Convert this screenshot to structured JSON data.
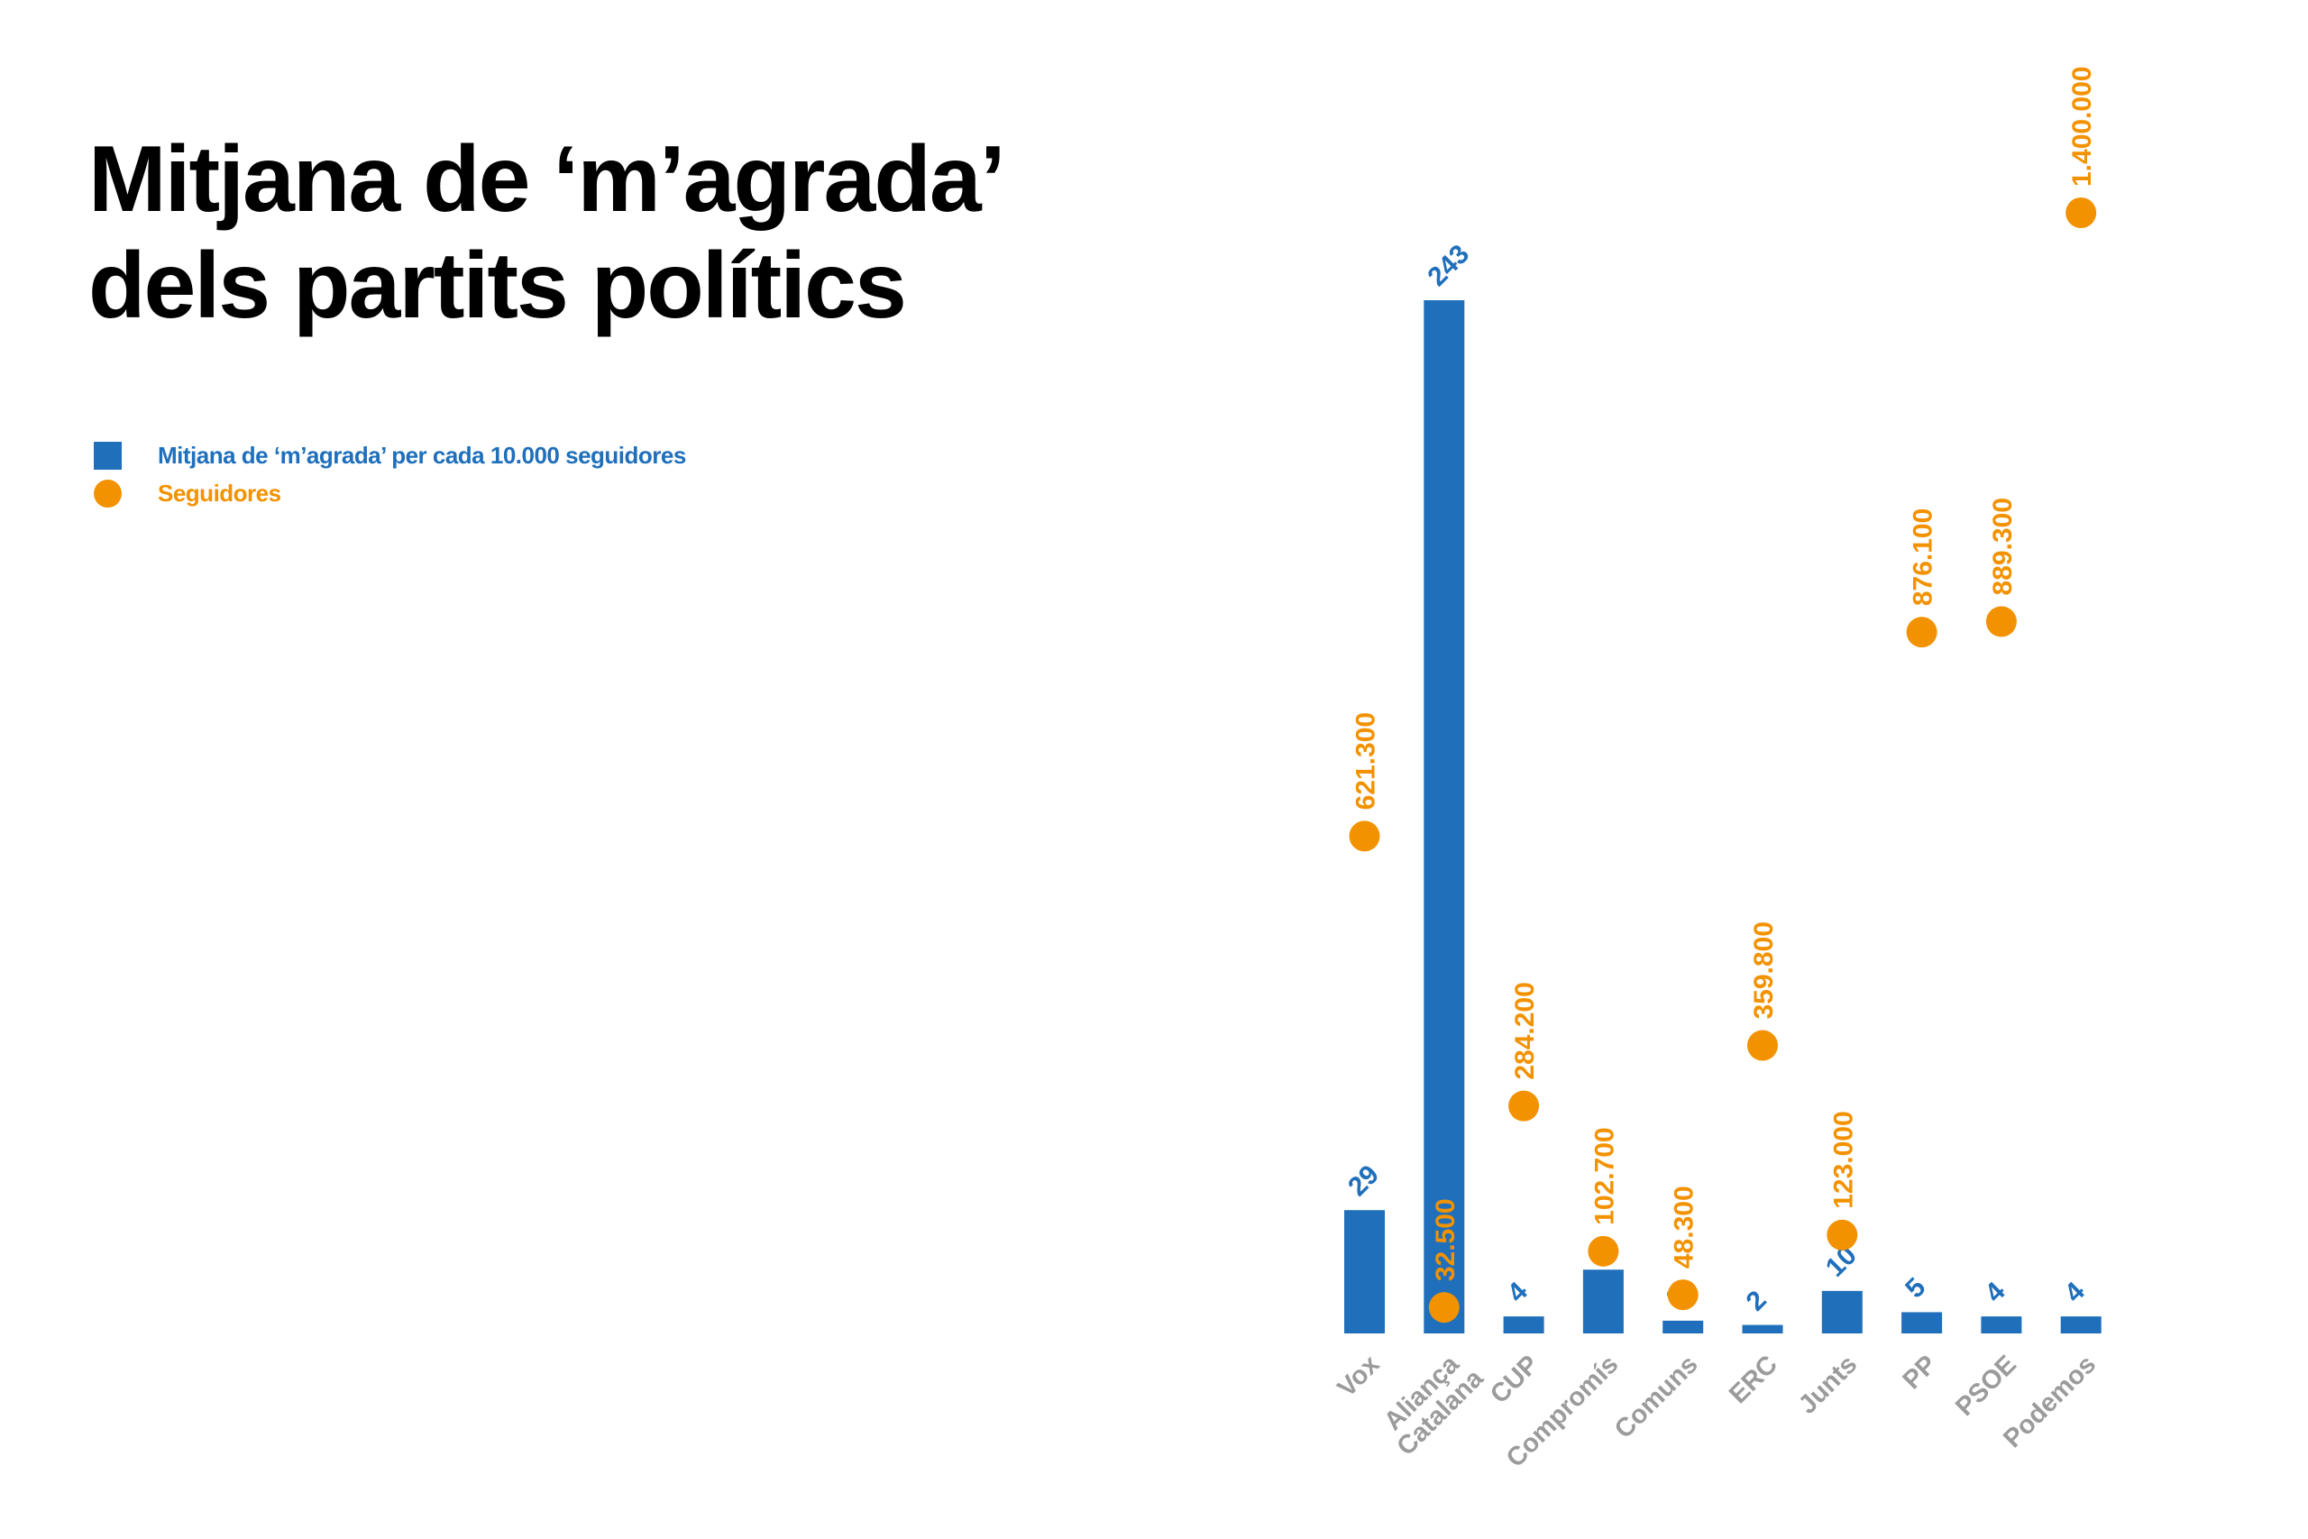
{
  "title": {
    "line1": "Mitjana de ‘m’agrada’",
    "line2": "dels partits polítics"
  },
  "legend": [
    {
      "label": "Mitjana de ‘m’agrada’ per cada 10.000 seguidores",
      "shape": "square",
      "color": "#1f6fbb"
    },
    {
      "label": "Seguidores",
      "shape": "circle",
      "color": "#f39200"
    }
  ],
  "colors": {
    "bar": "#1f6fbb",
    "dot": "#f39200",
    "category": "#9b9b9b"
  },
  "chart_data": {
    "type": "bar",
    "title": "Mitjana de ‘m’agrada’ dels partits polítics",
    "xlabel": "",
    "ylabel": "",
    "grid": false,
    "legend_position": "top-left",
    "categories": [
      [
        "Vox"
      ],
      [
        "Aliança",
        "Catalana"
      ],
      [
        "CUP"
      ],
      [
        "Compromís"
      ],
      [
        "Comuns"
      ],
      [
        "ERC"
      ],
      [
        "Junts"
      ],
      [
        "PP"
      ],
      [
        "PSOE"
      ],
      [
        "Podemos"
      ]
    ],
    "series": [
      {
        "name": "Mitjana de ‘m’agrada’ per cada 10.000 seguidores",
        "type": "bar",
        "values": [
          29,
          243,
          4,
          15,
          3,
          2,
          10,
          5,
          4,
          4
        ],
        "labels": [
          "29",
          "243",
          "4",
          "",
          "3",
          "2",
          "10",
          "5",
          "4",
          "4"
        ],
        "ylim": [
          0,
          243
        ]
      },
      {
        "name": "Seguidores",
        "type": "scatter",
        "values": [
          621300,
          32500,
          284200,
          102700,
          48300,
          359800,
          123000,
          876100,
          889300,
          1400000
        ],
        "labels": [
          "621.300",
          "32.500",
          "284.200",
          "102.700",
          "48.300",
          "359.800",
          "123.000",
          "876.100",
          "889.300",
          "1.400.000"
        ],
        "ylim": [
          0,
          1400000
        ]
      }
    ]
  }
}
